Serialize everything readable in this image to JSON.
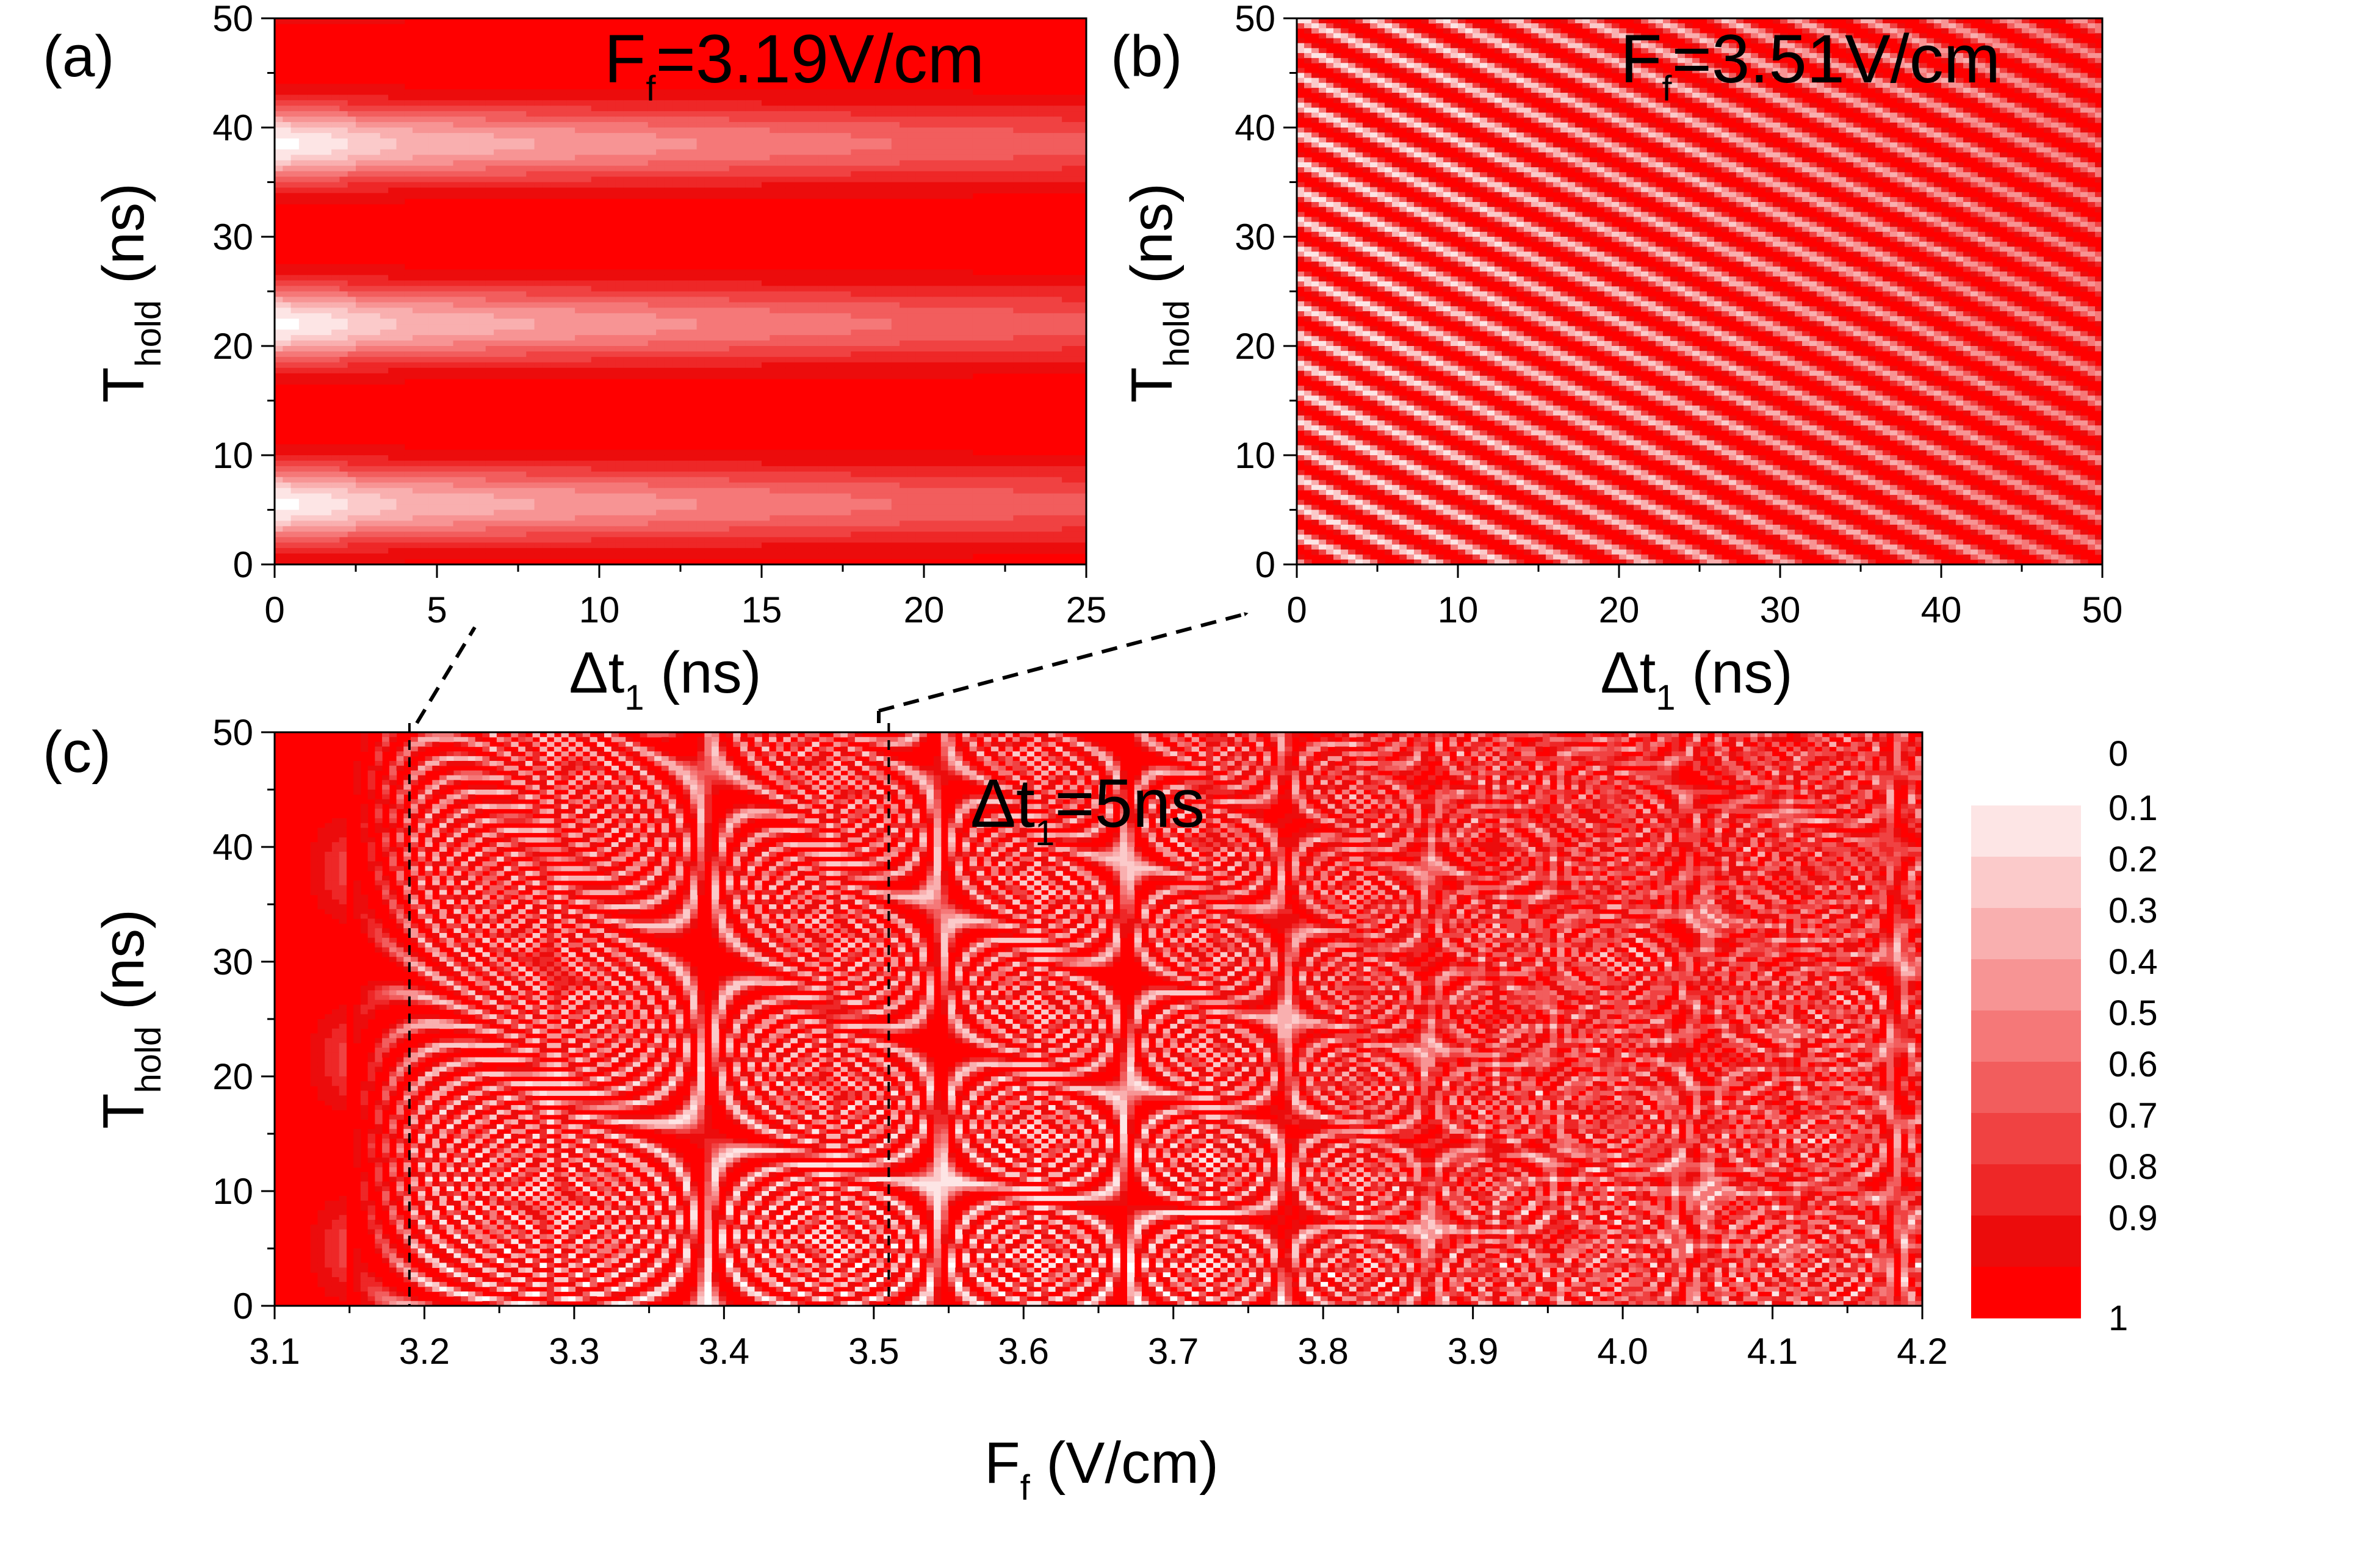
{
  "chart_data": [
    {
      "panel": "(a)",
      "type": "heatmap",
      "annotation": {
        "main": "F",
        "sub": "f",
        "rest": "=3.19V/cm"
      },
      "xlabel": {
        "main": "Δt",
        "sub": "1",
        "rest": " (ns)"
      },
      "ylabel": {
        "main": "T",
        "sub": "hold",
        "rest": " (ns)"
      },
      "xlim": [
        0,
        25
      ],
      "ylim": [
        0,
        50
      ],
      "xticks": [
        "0",
        "5",
        "10",
        "15",
        "20",
        "25"
      ],
      "yticks": [
        "0",
        "10",
        "20",
        "30",
        "40",
        "50"
      ],
      "model": {
        "kind": "fringes",
        "period_ns": 16.5,
        "phase_ns": 5.5,
        "x_decay_ns": 30
      }
    },
    {
      "panel": "(b)",
      "type": "heatmap",
      "annotation": {
        "main": "F",
        "sub": "f",
        "rest": "=3.51V/cm"
      },
      "xlabel": {
        "main": "Δt",
        "sub": "1",
        "rest": " (ns)"
      },
      "ylabel": {
        "main": "T",
        "sub": "hold",
        "rest": " (ns)"
      },
      "xlim": [
        0,
        50
      ],
      "ylim": [
        0,
        50
      ],
      "xticks": [
        "0",
        "10",
        "20",
        "30",
        "40",
        "50"
      ],
      "yticks": [
        "0",
        "10",
        "20",
        "30",
        "40",
        "50"
      ],
      "model": {
        "kind": "tilted_fringes",
        "stripe_count": 19,
        "slope": 0.6
      }
    },
    {
      "panel": "(c)",
      "type": "heatmap",
      "annotation": {
        "main": "Δt",
        "sub": "1",
        "rest": "=5ns"
      },
      "xlabel": {
        "main": "F",
        "sub": "f",
        "rest": " (V/cm)"
      },
      "ylabel": {
        "main": "T",
        "sub": "hold",
        "rest": " (ns)"
      },
      "xlim": [
        3.1,
        4.2
      ],
      "ylim": [
        0,
        50
      ],
      "xticks": [
        "3.1",
        "3.2",
        "3.3",
        "3.4",
        "3.5",
        "3.6",
        "3.7",
        "3.8",
        "3.9",
        "4.0",
        "4.1",
        "4.2"
      ],
      "yticks": [
        "0",
        "10",
        "20",
        "30",
        "40",
        "50"
      ],
      "reference_lines_x": [
        3.19,
        3.51
      ],
      "model": {
        "kind": "field_scan",
        "onset": 3.15
      }
    }
  ],
  "colorbar": {
    "levels": [
      "0",
      "0.1",
      "0.2",
      "0.3",
      "0.4",
      "0.5",
      "0.6",
      "0.7",
      "0.8",
      "0.9",
      "1"
    ],
    "colors": [
      "#ffffff",
      "#fde5e5",
      "#fbcaca",
      "#f9afaf",
      "#f79494",
      "#f57878",
      "#f25d5d",
      "#f04242",
      "#ee2727",
      "#ec0c0c",
      "#ff0000"
    ]
  }
}
